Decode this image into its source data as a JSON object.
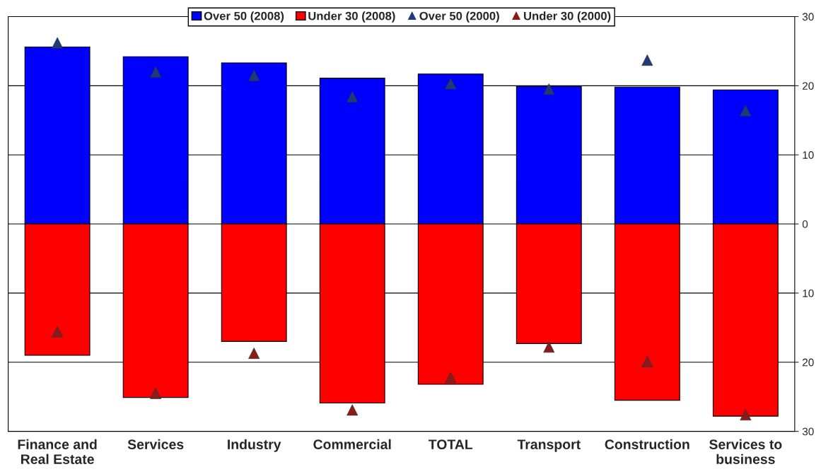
{
  "chart_data": {
    "type": "bar",
    "stacked": true,
    "categories": [
      "Finance and\nReal Estate",
      "Services",
      "Industry",
      "Commercial",
      "TOTAL",
      "Transport",
      "Construction",
      "Services to\nbusiness"
    ],
    "series": [
      {
        "name": "Over 50 (2008)",
        "color": "#0000ff",
        "values": [
          25.6,
          24.2,
          23.3,
          21.1,
          21.7,
          19.9,
          19.8,
          19.4
        ]
      },
      {
        "name": "Under 30 (2008)",
        "color": "#ff0000",
        "values": [
          -19.0,
          -25.1,
          -17.0,
          -25.9,
          -23.2,
          -17.3,
          -25.5,
          -27.8
        ]
      },
      {
        "name": "Over 50 (2000)",
        "type": "scatter",
        "marker": "triangle",
        "color": "#1f3a7a",
        "values": [
          26.2,
          22.0,
          21.5,
          18.4,
          20.3,
          19.5,
          23.7,
          16.4
        ]
      },
      {
        "name": "Under 30 (2000)",
        "type": "scatter",
        "marker": "triangle",
        "color": "#8b1a1a",
        "values": [
          -15.6,
          -24.5,
          -18.7,
          -26.9,
          -22.2,
          -17.8,
          -19.9,
          -27.6
        ]
      }
    ],
    "ylim": [
      -30,
      30
    ],
    "yticks": [
      {
        "value": -30,
        "label": "30"
      },
      {
        "value": -20,
        "label": "20"
      },
      {
        "value": -10,
        "label": "10"
      },
      0,
      10,
      20,
      30
    ],
    "grid": "y",
    "legend": "top"
  }
}
